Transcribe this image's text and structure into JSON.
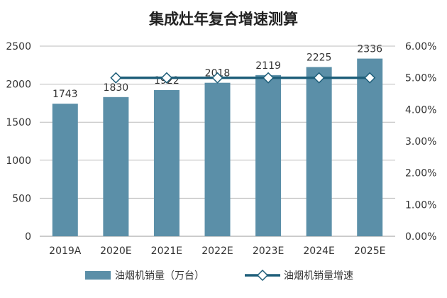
{
  "chart_data": {
    "type": "bar",
    "title": "集成灶年复合增速测算",
    "categories": [
      "2019A",
      "2020E",
      "2021E",
      "2022E",
      "2023E",
      "2024E",
      "2025E"
    ],
    "series": [
      {
        "name": "油烟机销量（万台）",
        "type": "bar",
        "axis": "left",
        "values": [
          1743,
          1830,
          1922,
          2018,
          2119,
          2225,
          2336
        ],
        "color": "#5b8fa8"
      },
      {
        "name": "油烟机销量增速",
        "type": "line",
        "axis": "right",
        "values": [
          null,
          5.0,
          5.0,
          5.0,
          5.0,
          5.0,
          5.0
        ],
        "color": "#1f5f7a"
      }
    ],
    "data_labels": [
      "1743",
      "1830",
      "1922",
      "2018",
      "2119",
      "2225",
      "2336"
    ],
    "ylim_left": [
      0,
      2500
    ],
    "yticks_left": [
      "0",
      "500",
      "1000",
      "1500",
      "2000",
      "2500"
    ],
    "ylim_right": [
      0,
      6
    ],
    "yticks_right": [
      "0.00%",
      "1.00%",
      "2.00%",
      "3.00%",
      "4.00%",
      "5.00%",
      "6.00%"
    ],
    "grid": true,
    "legend_placement": "bottom"
  }
}
